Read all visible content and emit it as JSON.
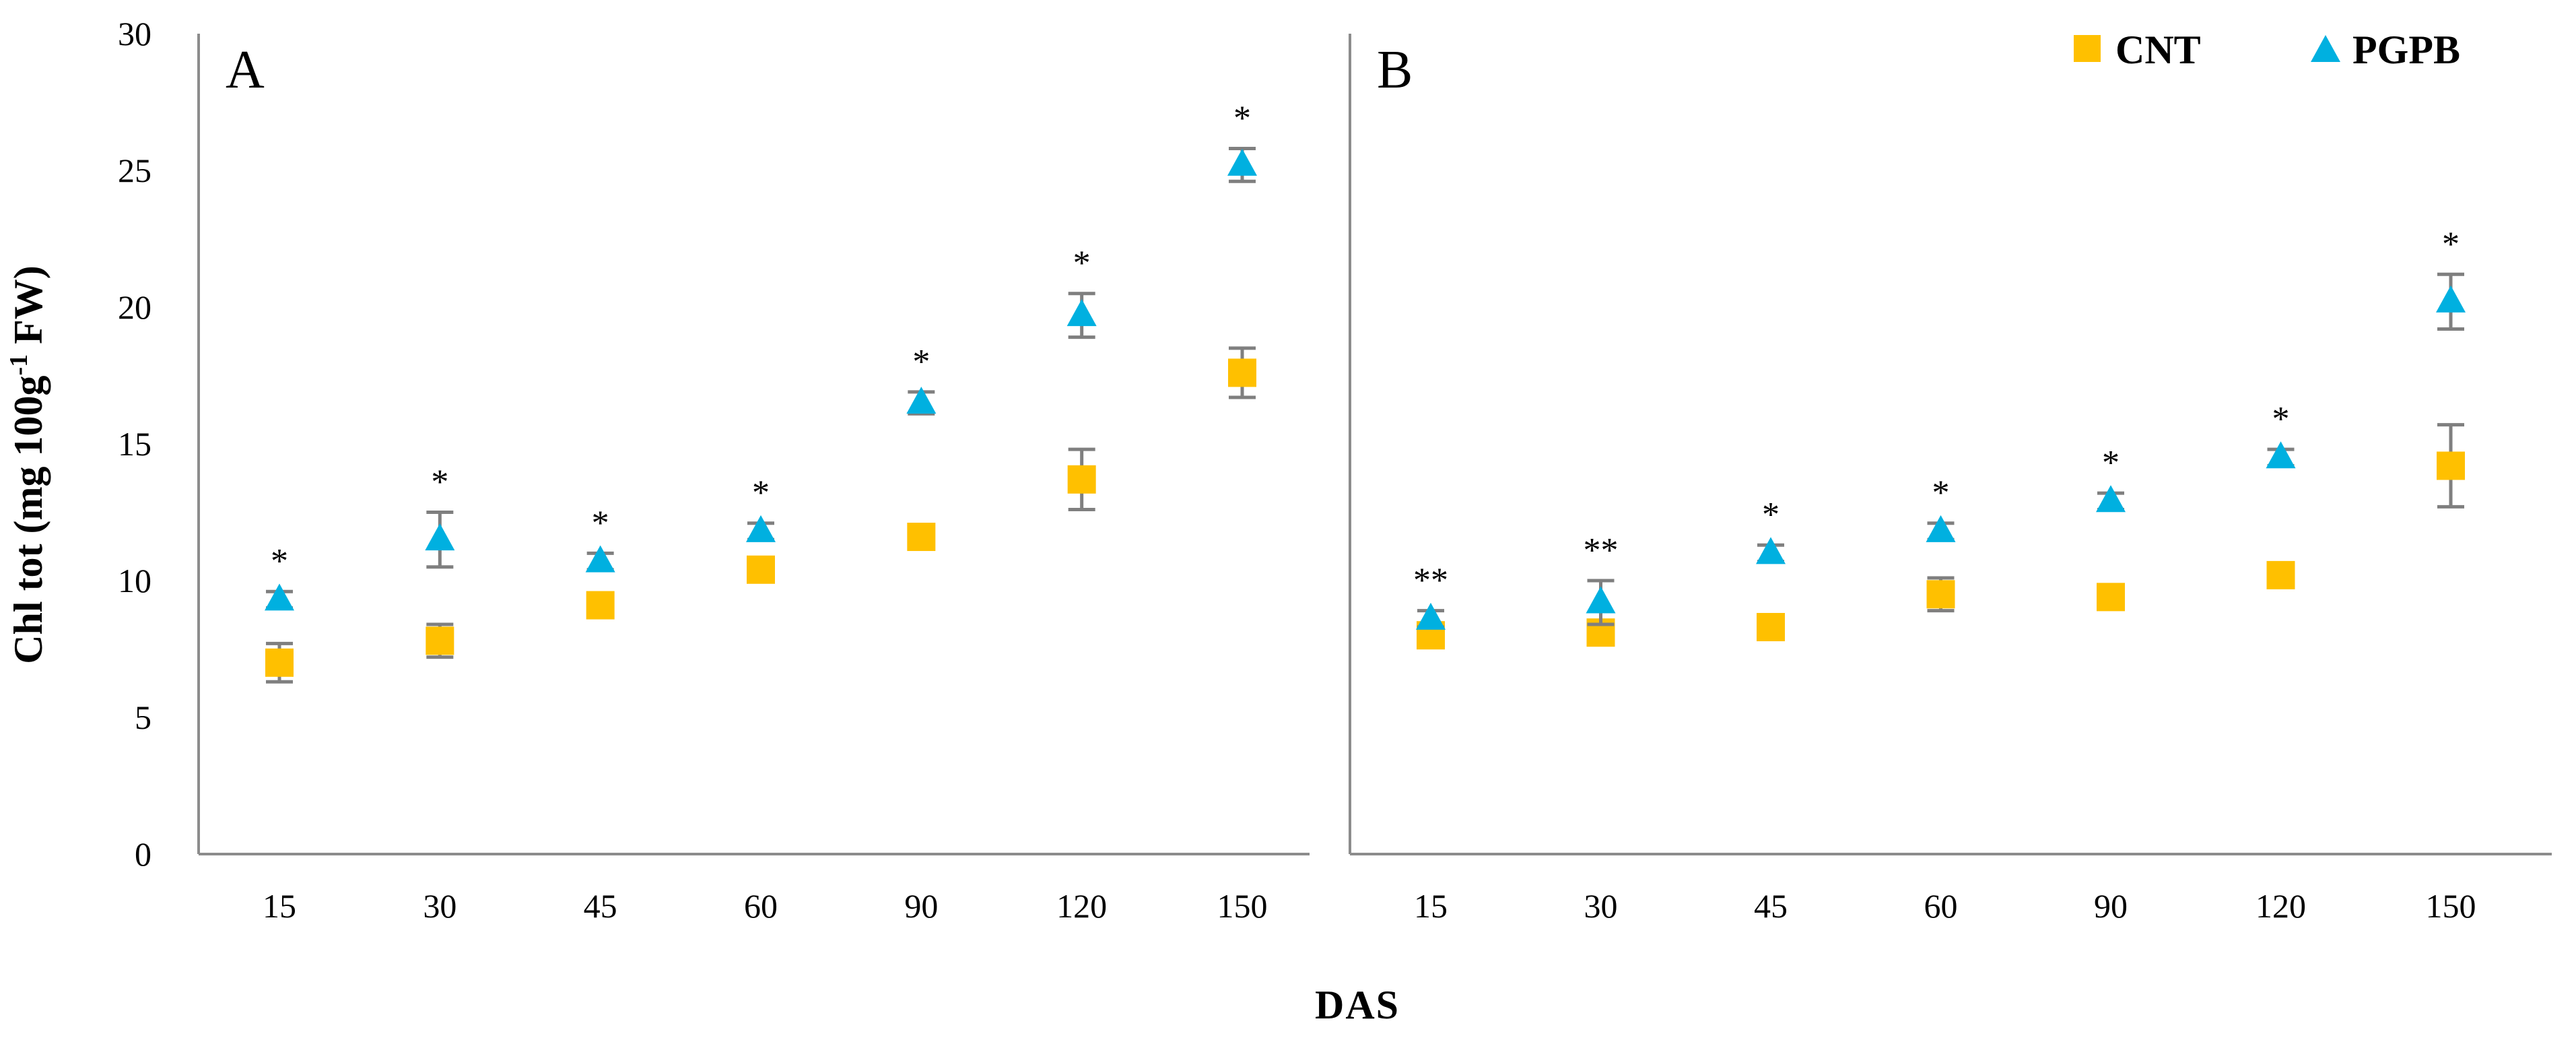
{
  "chart_data": {
    "type": "scatter",
    "ylabel": {
      "main": "Chl tot (mg 100g",
      "sup": "-1",
      "tail": " FW)"
    },
    "xlabel": "DAS",
    "ylim": [
      0,
      30
    ],
    "yticks": [
      "0",
      "5",
      "10",
      "15",
      "20",
      "25",
      "30"
    ],
    "categories": [
      "15",
      "30",
      "45",
      "60",
      "90",
      "120",
      "150"
    ],
    "legend": [
      {
        "name": "CNT",
        "marker": "square",
        "color": "#ffc000"
      },
      {
        "name": "PGPB",
        "marker": "triangle",
        "color": "#00b0e0"
      }
    ],
    "error_bar_color": "#7f7f7f",
    "panels": [
      {
        "label": "A",
        "series": [
          {
            "name": "CNT",
            "values": [
              7.0,
              7.8,
              9.1,
              10.4,
              11.6,
              13.7,
              17.6
            ],
            "errors": [
              0.7,
              0.6,
              0.3,
              0.3,
              0.3,
              1.1,
              0.9
            ]
          },
          {
            "name": "PGPB",
            "values": [
              9.3,
              11.5,
              10.7,
              11.8,
              16.5,
              19.7,
              25.2
            ],
            "errors": [
              0.3,
              1.0,
              0.3,
              0.3,
              0.4,
              0.8,
              0.6
            ]
          }
        ],
        "significance": [
          "*",
          "*",
          "*",
          "*",
          "*",
          "*",
          "*"
        ]
      },
      {
        "label": "B",
        "series": [
          {
            "name": "CNT",
            "values": [
              8.0,
              8.1,
              8.3,
              9.5,
              9.4,
              10.2,
              14.2
            ],
            "errors": [
              0.3,
              0.4,
              0.3,
              0.6,
              0.3,
              0.3,
              1.5
            ]
          },
          {
            "name": "PGPB",
            "values": [
              8.6,
              9.2,
              11.0,
              11.8,
              12.9,
              14.5,
              20.2
            ],
            "errors": [
              0.3,
              0.8,
              0.3,
              0.3,
              0.3,
              0.3,
              1.0
            ]
          }
        ],
        "significance": [
          "**",
          "**",
          "*",
          "*",
          "*",
          "*",
          "*"
        ]
      }
    ]
  }
}
